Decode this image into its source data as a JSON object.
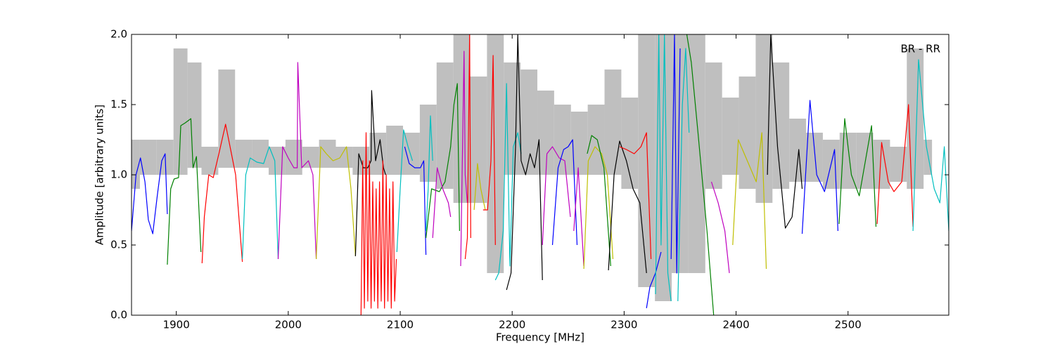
{
  "chart_data": {
    "type": "line",
    "xlabel": "Frequency [MHz]",
    "ylabel": "Amplitude [arbitrary units]",
    "annotation": "BR - RR",
    "xlim": [
      1860,
      2590
    ],
    "ylim": [
      0,
      2
    ],
    "xticks": [
      1900,
      2000,
      2100,
      2200,
      2300,
      2400,
      2500
    ],
    "yticks": [
      {
        "value": 0,
        "label": "0.0"
      },
      0.5,
      {
        "value": 1,
        "label": "1.0"
      },
      1.5,
      {
        "value": 2,
        "label": "2.0"
      }
    ],
    "band": {
      "color": "#bfbfbf",
      "x": [
        1860,
        1875,
        1890,
        1905,
        1915,
        1930,
        1945,
        1960,
        1975,
        1990,
        2005,
        2020,
        2035,
        2050,
        2065,
        2080,
        2095,
        2110,
        2125,
        2140,
        2155,
        2170,
        2185,
        2200,
        2215,
        2230,
        2245,
        2260,
        2275,
        2290,
        2305,
        2320,
        2335,
        2350,
        2365,
        2380,
        2395,
        2410,
        2425,
        2440,
        2455,
        2470,
        2485,
        2500,
        2515,
        2530,
        2545,
        2560,
        2575
      ],
      "lower": [
        0.9,
        1.0,
        1.0,
        1.0,
        1.05,
        1.0,
        1.05,
        1.05,
        1.05,
        1.0,
        1.0,
        1.05,
        1.05,
        1.05,
        1.0,
        1.0,
        1.0,
        1.0,
        0.95,
        0.9,
        0.8,
        0.8,
        0.3,
        1.0,
        1.0,
        1.0,
        1.0,
        1.0,
        1.0,
        1.0,
        0.9,
        0.2,
        0.1,
        0.3,
        0.3,
        0.9,
        1.0,
        0.9,
        0.8,
        0.9,
        0.95,
        0.95,
        0.9,
        0.9,
        0.9,
        0.9,
        0.95,
        0.9,
        1.0
      ],
      "upper": [
        1.25,
        1.25,
        1.25,
        1.9,
        1.8,
        1.2,
        1.75,
        1.25,
        1.25,
        1.2,
        1.25,
        1.2,
        1.25,
        1.2,
        1.2,
        1.3,
        1.35,
        1.3,
        1.5,
        1.8,
        2.0,
        1.7,
        2.0,
        1.8,
        1.75,
        1.6,
        1.5,
        1.45,
        1.5,
        1.75,
        1.55,
        2.0,
        2.0,
        2.0,
        2.0,
        1.8,
        1.55,
        1.7,
        2.0,
        1.8,
        1.4,
        1.3,
        1.25,
        1.3,
        1.3,
        1.25,
        1.2,
        1.9,
        1.25
      ]
    },
    "series": [
      {
        "color": "#0000ff",
        "x": [
          1860,
          1864,
          1868,
          1872,
          1875,
          1879,
          1883,
          1887,
          1890,
          1892
        ],
        "values": [
          0.6,
          1.0,
          1.12,
          0.95,
          0.68,
          0.58,
          0.85,
          1.1,
          1.15,
          0.72
        ]
      },
      {
        "color": "#008000",
        "x": [
          1892,
          1895,
          1898,
          1902,
          1904,
          1908,
          1913,
          1915,
          1918,
          1922
        ],
        "values": [
          0.36,
          0.9,
          0.97,
          0.98,
          1.35,
          1.37,
          1.4,
          1.05,
          1.13,
          0.45
        ]
      },
      {
        "color": "#ff0000",
        "x": [
          1923,
          1925,
          1929,
          1933,
          1938,
          1944,
          1948,
          1953,
          1959
        ],
        "values": [
          0.37,
          0.7,
          1.0,
          0.98,
          1.15,
          1.36,
          1.2,
          1.0,
          0.38
        ]
      },
      {
        "color": "#00bfbf",
        "x": [
          1959,
          1962,
          1966,
          1972,
          1978,
          1983,
          1988,
          1991
        ],
        "values": [
          0.4,
          1.0,
          1.12,
          1.09,
          1.08,
          1.2,
          1.1,
          0.4
        ]
      },
      {
        "color": "#bf00bf",
        "x": [
          1991,
          1995,
          2000,
          2005,
          2008,
          2008.5,
          2012,
          2018,
          2022,
          2025
        ],
        "values": [
          0.4,
          1.2,
          1.12,
          1.05,
          1.05,
          1.8,
          1.05,
          1.1,
          1.0,
          0.4
        ]
      },
      {
        "color": "#bfbf00",
        "x": [
          2025,
          2029,
          2034,
          2040,
          2046,
          2052,
          2056,
          2060
        ],
        "values": [
          0.4,
          1.2,
          1.15,
          1.1,
          1.12,
          1.2,
          0.9,
          0.42
        ]
      },
      {
        "color": "#000000",
        "x": [
          2060,
          2063,
          2067,
          2071,
          2074,
          2074.5,
          2078,
          2082,
          2085,
          2087
        ],
        "values": [
          0.42,
          1.15,
          1.05,
          1.05,
          1.1,
          1.6,
          1.1,
          1.25,
          1.05,
          1.0
        ]
      },
      {
        "color": "#ff0000",
        "x": [
          2065,
          2066.5,
          2068,
          2069.5,
          2071,
          2072.5,
          2074,
          2075.5,
          2077,
          2078.5,
          2080,
          2081.5,
          2083,
          2084.5,
          2086,
          2087.5,
          2089,
          2090.5,
          2092,
          2093.5,
          2095,
          2096.5
        ],
        "values": [
          0.0,
          1.1,
          0.05,
          1.3,
          0.1,
          1.1,
          0.05,
          0.95,
          0.1,
          0.9,
          0.05,
          0.95,
          0.1,
          1.1,
          0.05,
          1.0,
          0.1,
          0.9,
          0.05,
          0.95,
          0.1,
          0.4
        ]
      },
      {
        "color": "#00bfbf",
        "x": [
          2097,
          2100,
          2103,
          2107,
          2111
        ],
        "values": [
          0.45,
          0.9,
          1.32,
          1.2,
          1.1
        ]
      },
      {
        "color": "#0000ff",
        "x": [
          2104,
          2108,
          2113,
          2118,
          2121,
          2123
        ],
        "values": [
          1.2,
          1.08,
          1.05,
          1.05,
          1.1,
          0.43
        ]
      },
      {
        "color": "#00bfbf",
        "x": [
          2123,
          2125,
          2127,
          2129
        ],
        "values": [
          0.6,
          0.9,
          1.42,
          1.1
        ]
      },
      {
        "color": "#008000",
        "x": [
          2123,
          2128,
          2135,
          2140,
          2145,
          2148,
          2151,
          2153
        ],
        "values": [
          0.55,
          0.9,
          0.88,
          0.95,
          1.2,
          1.5,
          1.65,
          0.6
        ]
      },
      {
        "color": "#bf00bf",
        "x": [
          2129,
          2133,
          2138,
          2143,
          2145
        ],
        "values": [
          0.55,
          1.05,
          0.9,
          0.8,
          0.7
        ]
      },
      {
        "color": "#bf00bf",
        "x": [
          2154,
          2157,
          2158,
          2160
        ],
        "values": [
          0.35,
          1.88,
          1.0,
          0.8
        ]
      },
      {
        "color": "#ff0000",
        "x": [
          2158,
          2160,
          2162,
          2163
        ],
        "values": [
          0.4,
          0.55,
          2.0,
          0.55
        ]
      },
      {
        "color": "#bfbf00",
        "x": [
          2166,
          2169,
          2172,
          2176
        ],
        "values": [
          0.75,
          1.08,
          0.9,
          0.75
        ]
      },
      {
        "color": "#ff0000",
        "x": [
          2174,
          2178,
          2181,
          2183,
          2185
        ],
        "values": [
          0.75,
          0.75,
          1.1,
          1.85,
          0.5
        ]
      },
      {
        "color": "#00bfbf",
        "x": [
          2185,
          2188,
          2192,
          2195,
          2198,
          2201,
          2205,
          2208
        ],
        "values": [
          0.25,
          0.3,
          0.6,
          1.65,
          0.35,
          1.2,
          1.3,
          1.15
        ]
      },
      {
        "color": "#000000",
        "x": [
          2195,
          2199,
          2203,
          2205,
          2208,
          2212,
          2216,
          2220,
          2224,
          2227
        ],
        "values": [
          0.18,
          0.3,
          1.2,
          2.0,
          1.1,
          1.0,
          1.15,
          1.05,
          1.25,
          0.25
        ]
      },
      {
        "color": "#bf00bf",
        "x": [
          2227,
          2231,
          2236,
          2242,
          2247,
          2252
        ],
        "values": [
          0.5,
          1.15,
          1.2,
          1.12,
          1.1,
          0.7
        ]
      },
      {
        "color": "#0000ff",
        "x": [
          2236,
          2241,
          2246,
          2250,
          2254,
          2258
        ],
        "values": [
          0.5,
          1.05,
          1.18,
          1.2,
          1.25,
          0.5
        ]
      },
      {
        "color": "#bf00bf",
        "x": [
          2255,
          2259,
          2264
        ],
        "values": [
          0.6,
          1.05,
          0.35
        ]
      },
      {
        "color": "#bfbf00",
        "x": [
          2264,
          2268,
          2274,
          2280,
          2285,
          2290
        ],
        "values": [
          0.33,
          1.1,
          1.2,
          1.15,
          1.0,
          0.4
        ]
      },
      {
        "color": "#008000",
        "x": [
          2267,
          2271,
          2276,
          2282,
          2288
        ],
        "values": [
          1.15,
          1.28,
          1.25,
          1.05,
          0.35
        ]
      },
      {
        "color": "#000000",
        "x": [
          2286,
          2291,
          2296,
          2302,
          2308,
          2314,
          2320
        ],
        "values": [
          0.32,
          1.0,
          1.24,
          1.1,
          0.9,
          0.8,
          0.3
        ]
      },
      {
        "color": "#ff0000",
        "x": [
          2296,
          2302,
          2309,
          2315,
          2320,
          2324
        ],
        "values": [
          1.2,
          1.18,
          1.15,
          1.2,
          1.3,
          0.4
        ]
      },
      {
        "color": "#0000ff",
        "x": [
          2320,
          2323,
          2328,
          2333
        ],
        "values": [
          0.05,
          0.2,
          0.3,
          0.45
        ]
      },
      {
        "color": "#00bfbf",
        "x": [
          2328,
          2331,
          2333,
          2336,
          2339,
          2342
        ],
        "values": [
          0.15,
          2.0,
          0.5,
          2.0,
          0.3,
          0.1
        ]
      },
      {
        "color": "#0000ff",
        "x": [
          2342,
          2345,
          2347,
          2350
        ],
        "values": [
          0.4,
          2.0,
          0.3,
          1.9
        ]
      },
      {
        "color": "#00bfbf",
        "x": [
          2348,
          2352,
          2355,
          2358
        ],
        "values": [
          0.1,
          1.5,
          1.9,
          1.3
        ]
      },
      {
        "color": "#008000",
        "x": [
          2356,
          2360,
          2366,
          2374,
          2380
        ],
        "values": [
          2.0,
          1.8,
          1.3,
          0.6,
          0.0
        ]
      },
      {
        "color": "#bf00bf",
        "x": [
          2378,
          2384,
          2390,
          2394
        ],
        "values": [
          0.95,
          0.8,
          0.6,
          0.3
        ]
      },
      {
        "color": "#bfbf00",
        "x": [
          2397,
          2402,
          2410,
          2418,
          2423,
          2427
        ],
        "values": [
          0.5,
          1.25,
          1.1,
          0.95,
          1.3,
          0.33
        ]
      },
      {
        "color": "#000000",
        "x": [
          2428,
          2431,
          2437,
          2444,
          2450,
          2456,
          2459
        ],
        "values": [
          1.0,
          2.0,
          1.2,
          0.62,
          0.7,
          1.18,
          0.9
        ]
      },
      {
        "color": "#0000ff",
        "x": [
          2459,
          2466,
          2472,
          2479,
          2488,
          2491
        ],
        "values": [
          0.58,
          1.53,
          1.0,
          0.88,
          1.18,
          0.6
        ]
      },
      {
        "color": "#008000",
        "x": [
          2492,
          2497,
          2503,
          2510,
          2521,
          2525
        ],
        "values": [
          0.65,
          1.4,
          1.0,
          0.85,
          1.35,
          0.63
        ]
      },
      {
        "color": "#ff0000",
        "x": [
          2526,
          2530,
          2536,
          2541,
          2548,
          2554,
          2558
        ],
        "values": [
          0.65,
          1.23,
          0.95,
          0.88,
          0.95,
          1.5,
          0.63
        ]
      },
      {
        "color": "#00bfbf",
        "x": [
          2558,
          2563,
          2570,
          2577,
          2582,
          2586,
          2590
        ],
        "values": [
          0.6,
          1.82,
          1.2,
          0.9,
          0.8,
          1.2,
          0.6
        ]
      }
    ]
  }
}
